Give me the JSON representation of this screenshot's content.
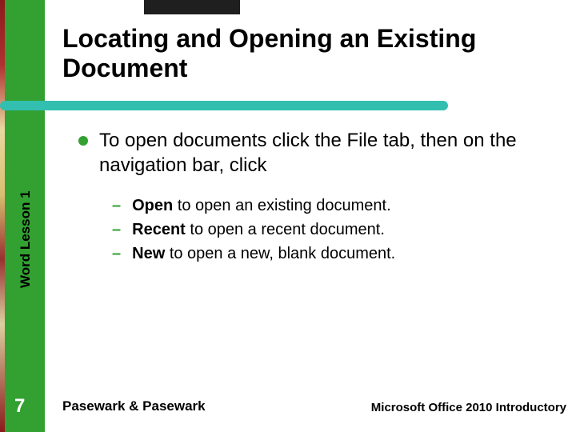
{
  "title": "Locating and Opening an Existing Document",
  "side_label": "Word Lesson 1",
  "page_number": "7",
  "bullets": [
    {
      "text": "To open documents click the File tab, then on the navigation bar, click",
      "sub": [
        {
          "bold": "Open",
          "rest": "to open an existing document."
        },
        {
          "bold": "Recent",
          "rest": "to open a recent document."
        },
        {
          "bold": "New",
          "rest": "to open a new, blank document."
        }
      ]
    }
  ],
  "footer": {
    "left": "Pasewark & Pasewark",
    "right": "Microsoft Office 2010 Introductory"
  },
  "style": {
    "background_color": "#ffffff",
    "sidebar_color": "#33a032",
    "underline_color": "#33bfb0",
    "bullet_color": "#33a032",
    "dash_color": "#33a032",
    "title_fontsize": 32,
    "body_fontsize": 24,
    "sub_fontsize": 20,
    "side_label_fontsize": 17,
    "page_num_fontsize": 24,
    "page_num_color": "#ffffff",
    "footer_left_fontsize": 17,
    "footer_right_fontsize": 15,
    "font_family": "Arial"
  }
}
